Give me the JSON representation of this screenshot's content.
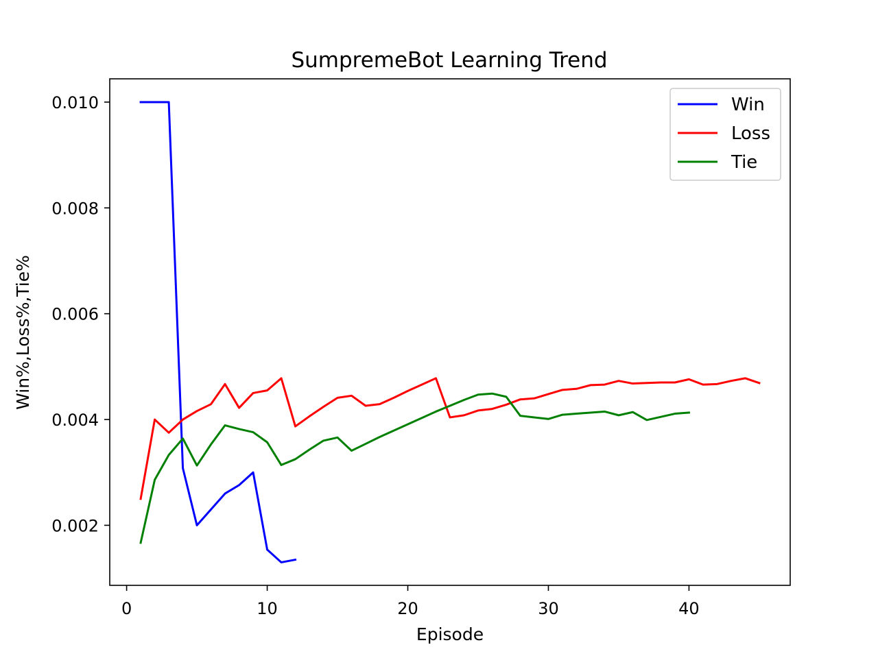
{
  "chart_data": {
    "type": "line",
    "title": "SumpremeBot Learning Trend",
    "xlabel": "Episode",
    "ylabel": "Win%,Loss%,Tie%",
    "xlim": [
      -1.2,
      47.2
    ],
    "ylim": [
      0.000865,
      0.01044
    ],
    "x_ticks": [
      0,
      10,
      20,
      30,
      40
    ],
    "x_tick_labels": [
      "0",
      "10",
      "20",
      "30",
      "40"
    ],
    "y_ticks": [
      0.002,
      0.004,
      0.006,
      0.008,
      0.01
    ],
    "y_tick_labels": [
      "0.002",
      "0.004",
      "0.006",
      "0.008",
      "0.010"
    ],
    "grid": false,
    "legend_position": "top-right",
    "series": [
      {
        "name": "Win",
        "color": "#0000ff",
        "x": [
          1,
          2,
          3,
          4,
          5,
          6,
          7,
          8,
          9,
          10,
          11,
          12
        ],
        "y": [
          0.01,
          0.01,
          0.01,
          0.00308,
          0.002,
          0.0023,
          0.0026,
          0.00276,
          0.003,
          0.00154,
          0.0013,
          0.00135
        ]
      },
      {
        "name": "Loss",
        "color": "#ff0000",
        "x": [
          1,
          2,
          3,
          4,
          5,
          6,
          7,
          8,
          9,
          10,
          11,
          12,
          13,
          14,
          15,
          16,
          17,
          18,
          19,
          20,
          21,
          22,
          23,
          24,
          25,
          26,
          27,
          28,
          29,
          30,
          31,
          32,
          33,
          34,
          35,
          36,
          37,
          38,
          39,
          40,
          41,
          42,
          43,
          44,
          45
        ],
        "y": [
          0.0025,
          0.004,
          0.00375,
          0.004,
          0.00416,
          0.00429,
          0.00467,
          0.00422,
          0.0045,
          0.00455,
          0.00478,
          0.00387,
          0.00406,
          0.00424,
          0.00441,
          0.00445,
          0.00426,
          0.00429,
          0.00441,
          0.00454,
          0.00466,
          0.00478,
          0.00404,
          0.00408,
          0.00417,
          0.0042,
          0.00428,
          0.00438,
          0.0044,
          0.00448,
          0.00456,
          0.00458,
          0.00465,
          0.00466,
          0.00473,
          0.00468,
          0.00469,
          0.0047,
          0.0047,
          0.00476,
          0.00466,
          0.00467,
          0.00473,
          0.00478,
          0.00469
        ]
      },
      {
        "name": "Tie",
        "color": "#008000",
        "x": [
          1,
          2,
          3,
          4,
          5,
          6,
          7,
          8,
          9,
          10,
          11,
          12,
          13,
          14,
          15,
          16,
          17,
          18,
          19,
          20,
          21,
          22,
          23,
          24,
          25,
          26,
          27,
          28,
          29,
          30,
          31,
          32,
          33,
          34,
          35,
          36,
          37,
          38,
          39,
          40
        ],
        "y": [
          0.00167,
          0.00286,
          0.00333,
          0.00364,
          0.00313,
          0.00353,
          0.00389,
          0.00382,
          0.00376,
          0.00357,
          0.00314,
          0.00325,
          0.00343,
          0.0036,
          0.00366,
          0.00341,
          0.00354,
          0.00367,
          0.00379,
          0.00391,
          0.00403,
          0.00415,
          0.00426,
          0.00437,
          0.00447,
          0.00449,
          0.00443,
          0.00407,
          0.00404,
          0.00401,
          0.00409,
          0.00411,
          0.00413,
          0.00415,
          0.00408,
          0.00414,
          0.00399,
          0.00405,
          0.00411,
          0.00413
        ]
      }
    ]
  }
}
